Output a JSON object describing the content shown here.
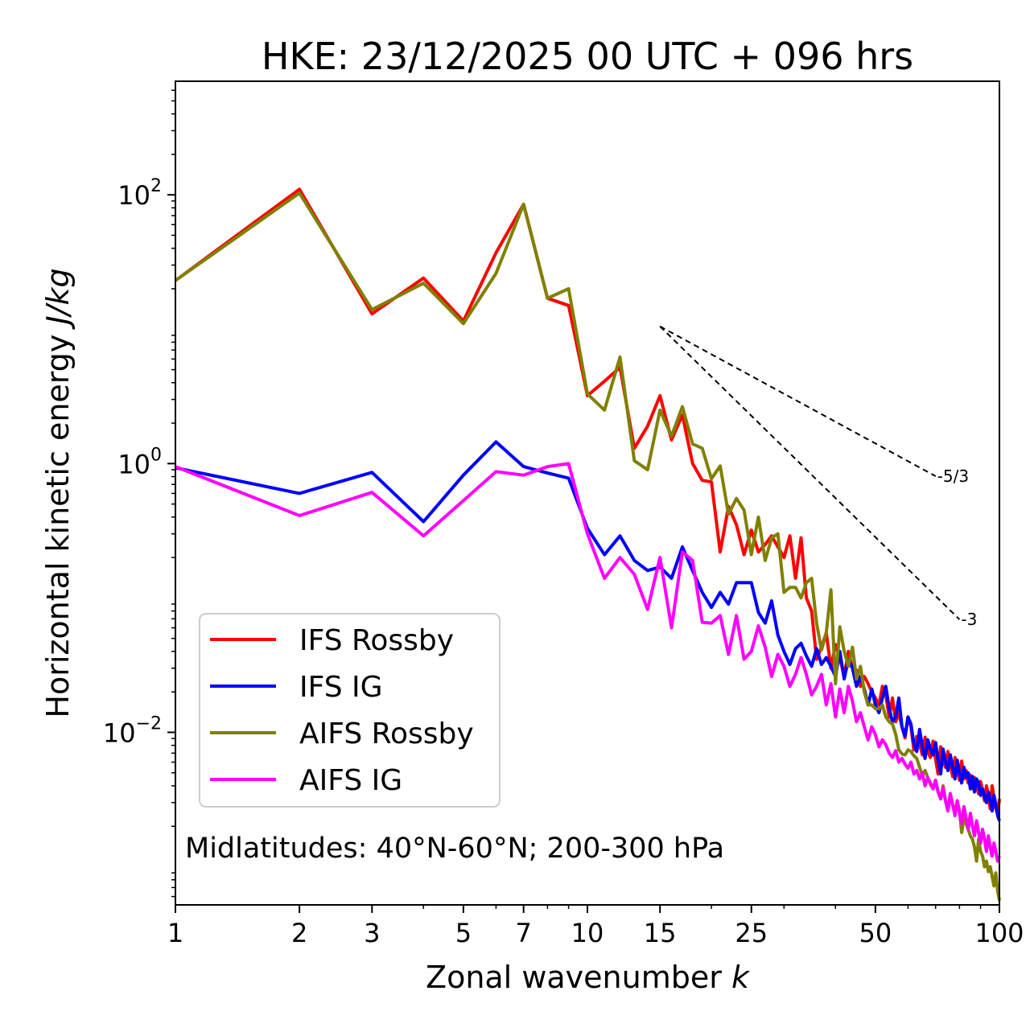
{
  "chart_data": {
    "type": "line",
    "title": "HKE: 23/12/2025 00 UTC + 096 hrs",
    "xlabel": "Zonal wavenumber",
    "xlabel_var": "k",
    "ylabel": "Horizontal kinetic energy",
    "ylabel_unit": "J/kg",
    "xscale": "log",
    "yscale": "log",
    "xlim": [
      1,
      100
    ],
    "ylim": [
      0.00052,
      700
    ],
    "x_ticks": [
      1,
      2,
      3,
      5,
      7,
      10,
      15,
      25,
      50,
      100
    ],
    "x_tick_labels": [
      "1",
      "2",
      "3",
      "5",
      "7",
      "10",
      "15",
      "25",
      "50",
      "100"
    ],
    "y_ticks": [
      {
        "value": 100,
        "base": "10",
        "exp": "2"
      },
      {
        "value": 1,
        "base": "10",
        "exp": "0"
      },
      {
        "value": 0.01,
        "base": "10",
        "exp": "−2"
      }
    ],
    "annotation": "Midlatitudes: 40°N-60°N; 200-300 hPa",
    "legend_position": "lower-left",
    "reference_slopes": [
      {
        "label": "-5/3",
        "slope": -1.6667,
        "x_start": 15,
        "x_end": 70,
        "y_start": 10.5
      },
      {
        "label": "-3",
        "slope": -3,
        "x_start": 15,
        "x_end": 80,
        "y_start": 10.5
      }
    ],
    "series": [
      {
        "name": "IFS Rossby",
        "color": "#ff0000",
        "x": [
          1,
          2,
          3,
          4,
          5,
          6,
          7,
          8,
          9,
          10,
          11,
          12,
          13,
          14,
          15,
          16,
          17,
          18,
          19,
          20,
          21,
          22,
          23,
          24,
          25,
          26,
          27,
          28,
          29,
          30,
          31,
          32,
          33,
          34,
          35,
          36,
          37,
          38,
          39,
          40,
          41,
          42,
          43,
          44,
          45,
          46,
          47,
          48,
          49,
          50,
          51,
          52,
          53,
          54,
          55,
          56,
          57,
          58,
          59,
          60,
          61,
          62,
          63,
          64,
          65,
          66,
          67,
          68,
          69,
          70,
          71,
          72,
          73,
          74,
          75,
          76,
          77,
          78,
          79,
          80,
          81,
          82,
          83,
          84,
          85,
          86,
          87,
          88,
          89,
          90,
          91,
          92,
          93,
          94,
          95,
          96,
          97,
          98,
          99,
          100
        ],
        "values": [
          23,
          110,
          13,
          24,
          11.5,
          37,
          85,
          17,
          15,
          3.2,
          4.1,
          5.2,
          1.3,
          1.9,
          3.2,
          1.5,
          2.3,
          1.0,
          0.75,
          0.73,
          0.22,
          0.48,
          0.35,
          0.21,
          0.32,
          0.22,
          0.25,
          0.29,
          0.24,
          0.2,
          0.29,
          0.14,
          0.28,
          0.1,
          0.08,
          0.035,
          0.043,
          0.055,
          0.03,
          0.045,
          0.036,
          0.026,
          0.04,
          0.03,
          0.029,
          0.022,
          0.026,
          0.023,
          0.02,
          0.018,
          0.016,
          0.022,
          0.019,
          0.013,
          0.018,
          0.012,
          0.014,
          0.011,
          0.0091,
          0.013,
          0.011,
          0.0074,
          0.0093,
          0.0082,
          0.0068,
          0.0092,
          0.0072,
          0.0065,
          0.0086,
          0.0063,
          0.0049,
          0.0078,
          0.0062,
          0.0055,
          0.0072,
          0.0058,
          0.0047,
          0.0065,
          0.0053,
          0.0044,
          0.0061,
          0.0045,
          0.0052,
          0.0042,
          0.0048,
          0.0038,
          0.0046,
          0.004,
          0.0035,
          0.0043,
          0.0037,
          0.0031,
          0.004,
          0.0034,
          0.0027,
          0.004,
          0.0033,
          0.0027,
          0.0025,
          0.0032
        ]
      },
      {
        "name": "IFS IG",
        "color": "#0000ff",
        "x": [
          1,
          2,
          3,
          4,
          5,
          6,
          7,
          8,
          9,
          10,
          11,
          12,
          13,
          14,
          15,
          16,
          17,
          18,
          19,
          20,
          21,
          22,
          23,
          24,
          25,
          26,
          27,
          28,
          29,
          30,
          31,
          32,
          33,
          34,
          35,
          36,
          37,
          38,
          39,
          40,
          41,
          42,
          43,
          44,
          45,
          46,
          47,
          48,
          49,
          50,
          51,
          52,
          53,
          54,
          55,
          56,
          57,
          58,
          59,
          60,
          61,
          62,
          63,
          64,
          65,
          66,
          67,
          68,
          69,
          70,
          71,
          72,
          73,
          74,
          75,
          76,
          77,
          78,
          79,
          80,
          81,
          82,
          83,
          84,
          85,
          86,
          87,
          88,
          89,
          90,
          91,
          92,
          93,
          94,
          95,
          96,
          97,
          98,
          99,
          100
        ],
        "values": [
          0.93,
          0.6,
          0.86,
          0.37,
          0.82,
          1.45,
          0.95,
          0.85,
          0.78,
          0.33,
          0.21,
          0.29,
          0.19,
          0.16,
          0.17,
          0.14,
          0.24,
          0.16,
          0.11,
          0.085,
          0.11,
          0.09,
          0.13,
          0.13,
          0.13,
          0.078,
          0.065,
          0.095,
          0.053,
          0.04,
          0.032,
          0.042,
          0.046,
          0.037,
          0.031,
          0.042,
          0.032,
          0.036,
          0.031,
          0.026,
          0.04,
          0.025,
          0.035,
          0.03,
          0.022,
          0.026,
          0.021,
          0.016,
          0.021,
          0.016,
          0.014,
          0.018,
          0.022,
          0.015,
          0.012,
          0.013,
          0.018,
          0.011,
          0.0094,
          0.013,
          0.0115,
          0.0082,
          0.0072,
          0.0105,
          0.0078,
          0.0064,
          0.0088,
          0.0075,
          0.0068,
          0.0084,
          0.0062,
          0.0049,
          0.0075,
          0.006,
          0.0052,
          0.0068,
          0.0055,
          0.0045,
          0.0062,
          0.005,
          0.0042,
          0.0055,
          0.0046,
          0.005,
          0.0038,
          0.0047,
          0.0036,
          0.0045,
          0.0042,
          0.0034,
          0.0038,
          0.0033,
          0.003,
          0.0036,
          0.0031,
          0.0026,
          0.0034,
          0.0029,
          0.0024,
          0.0022
        ]
      },
      {
        "name": "AIFS Rossby",
        "color": "#808000",
        "x": [
          1,
          2,
          3,
          4,
          5,
          6,
          7,
          8,
          9,
          10,
          11,
          12,
          13,
          14,
          15,
          16,
          17,
          18,
          19,
          20,
          21,
          22,
          23,
          24,
          25,
          26,
          27,
          28,
          29,
          30,
          31,
          32,
          33,
          34,
          35,
          36,
          37,
          38,
          39,
          40,
          41,
          42,
          43,
          44,
          45,
          46,
          47,
          48,
          49,
          50,
          51,
          52,
          53,
          54,
          55,
          56,
          57,
          58,
          59,
          60,
          61,
          62,
          63,
          64,
          65,
          66,
          67,
          68,
          69,
          70,
          71,
          72,
          73,
          74,
          75,
          76,
          77,
          78,
          79,
          80,
          81,
          82,
          83,
          84,
          85,
          86,
          87,
          88,
          89,
          90,
          91,
          92,
          93,
          94,
          95,
          96,
          97,
          98,
          99,
          100
        ],
        "values": [
          23,
          103,
          14,
          22,
          11,
          26,
          85,
          17,
          20,
          3.3,
          2.5,
          6.2,
          1.05,
          0.9,
          2.5,
          1.6,
          2.65,
          1.4,
          1.3,
          0.77,
          0.96,
          0.42,
          0.55,
          0.45,
          0.21,
          0.4,
          0.19,
          0.28,
          0.3,
          0.11,
          0.12,
          0.12,
          0.1,
          0.13,
          0.14,
          0.065,
          0.041,
          0.055,
          0.115,
          0.023,
          0.061,
          0.04,
          0.031,
          0.043,
          0.025,
          0.031,
          0.02,
          0.016,
          0.016,
          0.015,
          0.015,
          0.016,
          0.013,
          0.012,
          0.0115,
          0.0097,
          0.0074,
          0.0069,
          0.0068,
          0.0074,
          0.0072,
          0.0067,
          0.0064,
          0.0055,
          0.0048,
          0.0052,
          0.0046,
          0.0041,
          0.0038,
          0.0044,
          0.0036,
          0.0032,
          0.004,
          0.0031,
          0.0026,
          0.0035,
          0.0029,
          0.0025,
          0.0031,
          0.0026,
          0.0018,
          0.0023,
          0.0021,
          0.0019,
          0.0017,
          0.0016,
          0.0014,
          0.0011,
          0.0016,
          0.0013,
          0.0012,
          0.001,
          0.0011,
          0.00092,
          0.001,
          0.00085,
          0.00072,
          0.0009,
          0.00066,
          0.00056
        ]
      },
      {
        "name": "AIFS IG",
        "color": "#ff00ff",
        "x": [
          1,
          2,
          3,
          4,
          5,
          6,
          7,
          8,
          9,
          10,
          11,
          12,
          13,
          14,
          15,
          16,
          17,
          18,
          19,
          20,
          21,
          22,
          23,
          24,
          25,
          26,
          27,
          28,
          29,
          30,
          31,
          32,
          33,
          34,
          35,
          36,
          37,
          38,
          39,
          40,
          41,
          42,
          43,
          44,
          45,
          46,
          47,
          48,
          49,
          50,
          51,
          52,
          53,
          54,
          55,
          56,
          57,
          58,
          59,
          60,
          61,
          62,
          63,
          64,
          65,
          66,
          67,
          68,
          69,
          70,
          71,
          72,
          73,
          74,
          75,
          76,
          77,
          78,
          79,
          80,
          81,
          82,
          83,
          84,
          85,
          86,
          87,
          88,
          89,
          90,
          91,
          92,
          93,
          94,
          95,
          96,
          97,
          98,
          99,
          100
        ],
        "values": [
          0.95,
          0.41,
          0.61,
          0.29,
          0.53,
          0.87,
          0.82,
          0.95,
          1.0,
          0.3,
          0.14,
          0.2,
          0.15,
          0.082,
          0.2,
          0.06,
          0.22,
          0.19,
          0.066,
          0.065,
          0.074,
          0.038,
          0.074,
          0.035,
          0.04,
          0.062,
          0.043,
          0.026,
          0.038,
          0.031,
          0.022,
          0.027,
          0.036,
          0.027,
          0.019,
          0.022,
          0.027,
          0.016,
          0.023,
          0.013,
          0.021,
          0.014,
          0.022,
          0.017,
          0.012,
          0.014,
          0.011,
          0.0088,
          0.011,
          0.0096,
          0.0078,
          0.0088,
          0.0081,
          0.007,
          0.0065,
          0.0073,
          0.006,
          0.0064,
          0.0058,
          0.0054,
          0.006,
          0.0049,
          0.0052,
          0.0045,
          0.005,
          0.004,
          0.0046,
          0.0042,
          0.0038,
          0.0044,
          0.0036,
          0.0032,
          0.0039,
          0.0031,
          0.0026,
          0.0035,
          0.0029,
          0.0024,
          0.0031,
          0.0025,
          0.0021,
          0.0028,
          0.0023,
          0.0019,
          0.0025,
          0.002,
          0.0017,
          0.0022,
          0.0018,
          0.0015,
          0.0019,
          0.0016,
          0.0013,
          0.0017,
          0.0014,
          0.0012,
          0.0015,
          0.0013,
          0.0011,
          0.0012
        ]
      }
    ]
  }
}
